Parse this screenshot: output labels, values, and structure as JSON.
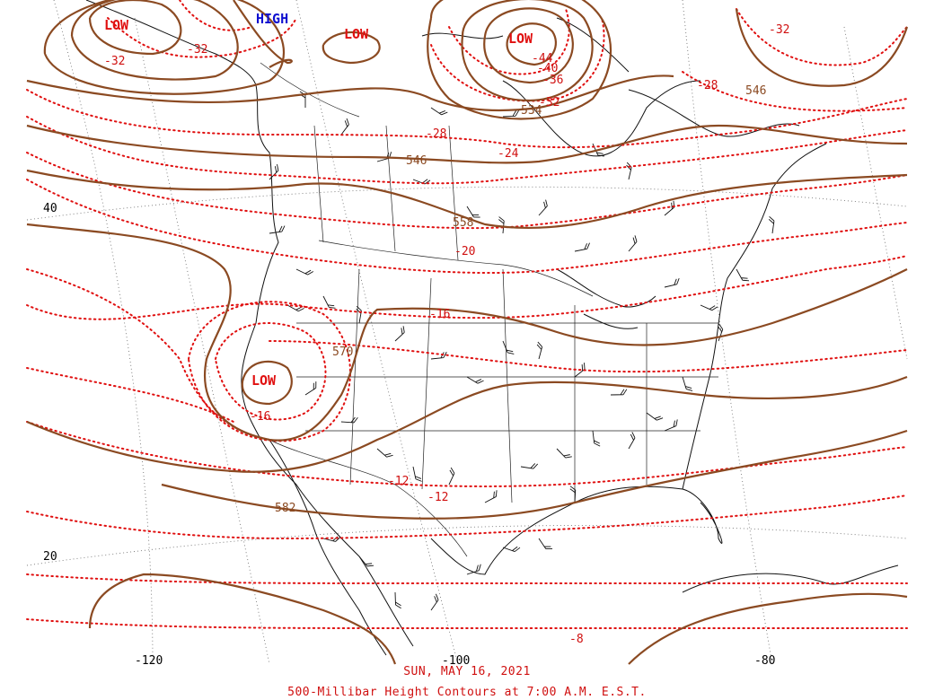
{
  "date": "SUN, MAY 16, 2021",
  "subtitle": "500-Millibar Height Contours at 7:00 A.M. E.S.T.",
  "colors": {
    "height_contour": "#8b4a22",
    "temperature_isotherm": "#e01010",
    "geography": "#111111",
    "low": "#e01010",
    "high": "#1010d0"
  },
  "systems": [
    {
      "type": "LOW",
      "label": "LOW",
      "id": "low-alaska"
    },
    {
      "type": "HIGH",
      "label": "HIGH",
      "id": "high-yukon"
    },
    {
      "type": "LOW",
      "label": "LOW",
      "id": "low-beaufort"
    },
    {
      "type": "LOW",
      "label": "LOW",
      "id": "low-hudson"
    },
    {
      "type": "LOW",
      "label": "LOW",
      "id": "low-california"
    }
  ],
  "height_labels": [
    "546",
    "534",
    "546",
    "558",
    "570",
    "582"
  ],
  "temperature_labels": [
    "-32",
    "-32",
    "-32",
    "-28",
    "-44",
    "-40",
    "-36",
    "-32",
    "-28",
    "-24",
    "-20",
    "-16",
    "-16",
    "-12",
    "-12",
    "-8"
  ],
  "latitude_labels": [
    "40",
    "20"
  ],
  "longitude_labels": [
    "-120",
    "-100",
    "-80"
  ]
}
